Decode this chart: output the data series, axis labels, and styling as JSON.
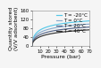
{
  "title": "",
  "xlabel": "Pressure (bar)",
  "ylabel": "Quantity stored\n(V/V adsorbent)",
  "xlim": [
    0,
    70
  ],
  "ylim": [
    0,
    160
  ],
  "xticks": [
    10,
    20,
    30,
    40,
    50,
    60,
    70
  ],
  "yticks": [
    0,
    40,
    80,
    120,
    160
  ],
  "curves": [
    {
      "label": "T = -20°C",
      "color": "#55c8e8",
      "qmax": 155,
      "k": 0.08,
      "n": 0.58
    },
    {
      "label": "T = 0°C",
      "color": "#88aacc",
      "qmax": 140,
      "k": 0.065,
      "n": 0.58
    },
    {
      "label": "T = 20°C",
      "color": "#556688",
      "qmax": 126,
      "k": 0.052,
      "n": 0.58
    },
    {
      "label": "T = 40°C",
      "color": "#333333",
      "qmax": 112,
      "k": 0.042,
      "n": 0.58
    }
  ],
  "legend_fontsize": 4.0,
  "axis_fontsize": 4.5,
  "tick_fontsize": 3.8,
  "linewidth": 0.85,
  "bg_color": "#f5f5f5"
}
